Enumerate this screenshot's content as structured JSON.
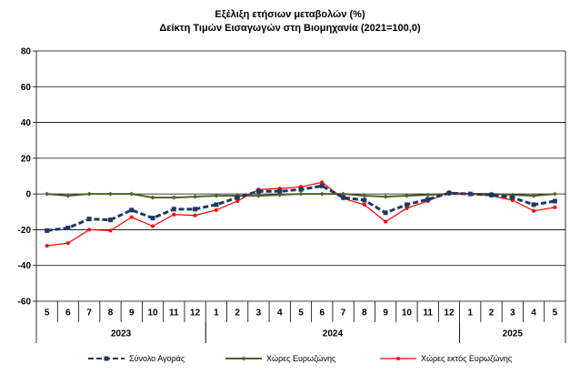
{
  "chart_data": {
    "type": "line",
    "title": "Εξέλιξη ετήσιων μεταβολών (%)",
    "subtitle": "Δείκτη Τιμών Εισαγωγών στη Βιομηχανία (2021=100,0)",
    "ylim": [
      -60,
      80
    ],
    "yticks": [
      -60,
      -40,
      -20,
      0,
      20,
      40,
      60,
      80
    ],
    "categories": [
      "5",
      "6",
      "7",
      "8",
      "9",
      "10",
      "11",
      "12",
      "1",
      "2",
      "3",
      "4",
      "5",
      "6",
      "7",
      "8",
      "9",
      "10",
      "11",
      "12",
      "1",
      "2",
      "3",
      "4",
      "5"
    ],
    "years": [
      {
        "label": "2023",
        "start": 0,
        "end": 7
      },
      {
        "label": "2024",
        "start": 8,
        "end": 19
      },
      {
        "label": "2025",
        "start": 20,
        "end": 24
      }
    ],
    "grid": true,
    "legend_position": "bottom",
    "series": [
      {
        "name": "Σύνολο Αγοράς",
        "color": "#1f3864",
        "style": "dashed-square",
        "values": [
          -20.5,
          -19,
          -14,
          -14.5,
          -9,
          -13.5,
          -8.5,
          -8.5,
          -6,
          -2,
          1.5,
          1.5,
          2.5,
          4.5,
          -2,
          -3.5,
          -10.5,
          -6,
          -3,
          0.5,
          0,
          -0.5,
          -2,
          -6,
          -4
        ]
      },
      {
        "name": "Χώρες Ευρωζώνης",
        "color": "#4f6228",
        "style": "solid-diamond",
        "values": [
          0,
          -1,
          0,
          0,
          0,
          -2,
          -2,
          -1.5,
          -1,
          -1,
          -1,
          -0.5,
          0,
          0,
          0,
          -1,
          -1.5,
          -1,
          -0.5,
          0,
          0,
          0,
          -0.5,
          -1,
          0
        ]
      },
      {
        "name": "Χώρες εκτός Ευρωζώνης",
        "color": "#ff0000",
        "style": "solid-circle",
        "values": [
          -29,
          -27.5,
          -20,
          -20.5,
          -13,
          -18,
          -11.5,
          -12,
          -9,
          -4,
          2.5,
          3,
          4,
          6.5,
          -2.5,
          -6,
          -15.5,
          -8,
          -4,
          1,
          0,
          -1,
          -3.5,
          -9.5,
          -7.5
        ]
      }
    ]
  }
}
